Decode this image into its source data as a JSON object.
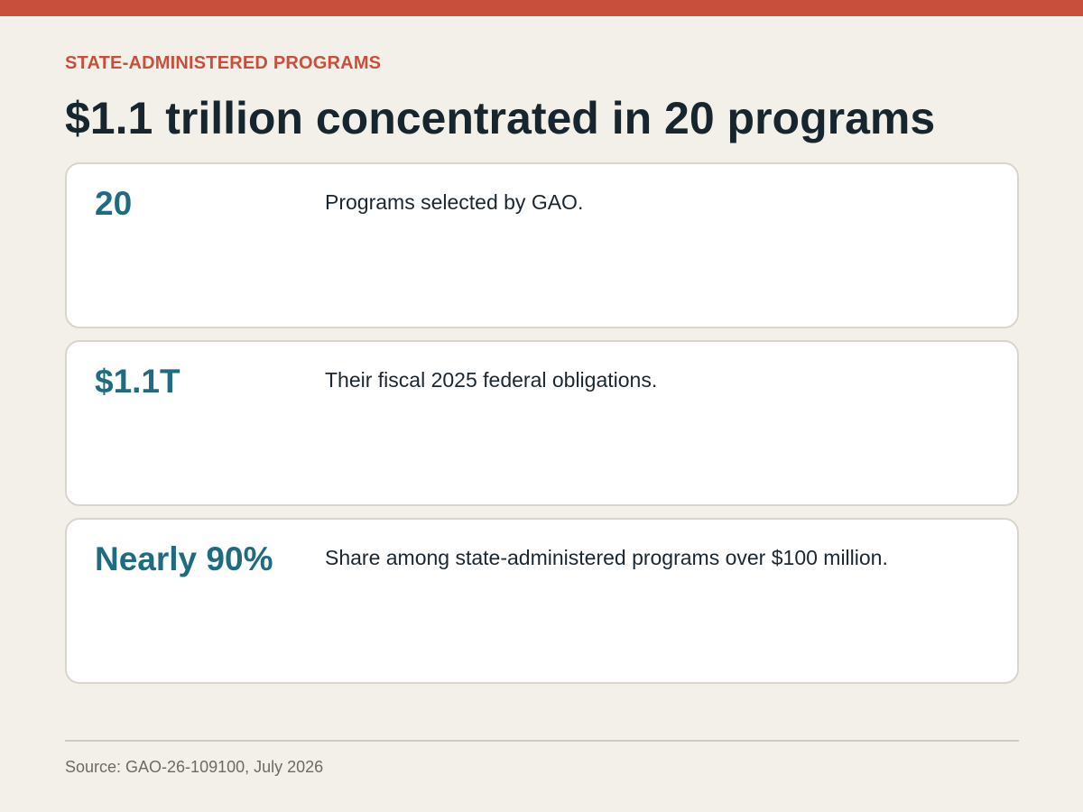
{
  "colors": {
    "accent": "#c94f3d",
    "title": "#17252f",
    "stat_value": "#1f6b82",
    "background": "#f3f0ea",
    "card_background": "#ffffff"
  },
  "header": {
    "eyebrow": "STATE-ADMINISTERED PROGRAMS",
    "title": "$1.1 trillion concentrated in 20 programs"
  },
  "stats": [
    {
      "value": "20",
      "description": "Programs selected by GAO."
    },
    {
      "value": "$1.1T",
      "description": "Their fiscal 2025 federal obligations."
    },
    {
      "value": "Nearly 90%",
      "description": "Share among state-administered programs over $100 million."
    }
  ],
  "footer": {
    "source": "Source: GAO-26-109100, July 2026"
  }
}
